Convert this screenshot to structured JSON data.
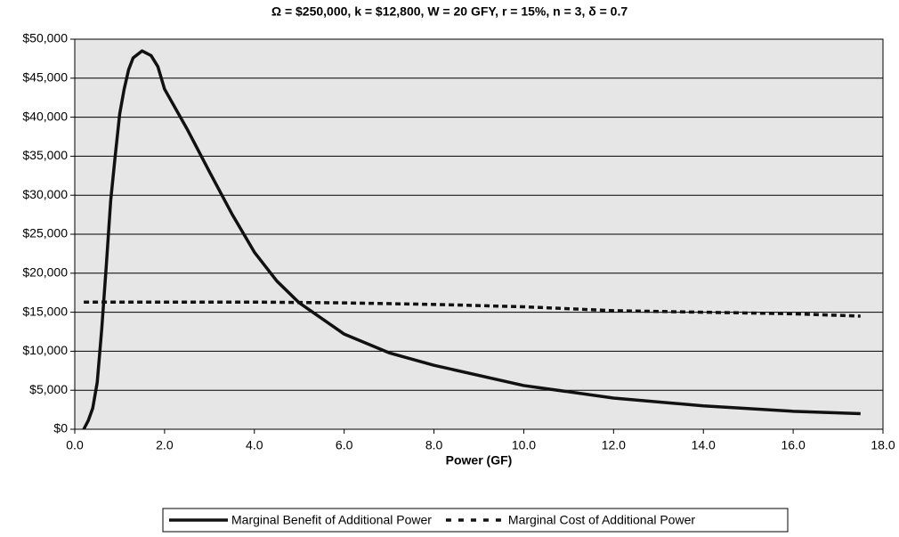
{
  "chart_data": {
    "type": "line",
    "title": "Ω = $250,000, k = $12,800, W = 20 GFY, r = 15%, n = 3, δ = 0.7",
    "xlabel": "Power (GF)",
    "xlim": [
      0,
      18
    ],
    "ylim": [
      0,
      50000
    ],
    "xticks": [
      {
        "value": 0,
        "label": "0.0"
      },
      {
        "value": 2,
        "label": "2.0"
      },
      {
        "value": 4,
        "label": "4.0"
      },
      {
        "value": 6,
        "label": "6.0"
      },
      {
        "value": 8,
        "label": "8.0"
      },
      {
        "value": 10,
        "label": "10.0"
      },
      {
        "value": 12,
        "label": "12.0"
      },
      {
        "value": 14,
        "label": "14.0"
      },
      {
        "value": 16,
        "label": "16.0"
      },
      {
        "value": 18,
        "label": "18.0"
      }
    ],
    "yticks": [
      {
        "value": 0,
        "label": "$0"
      },
      {
        "value": 5000,
        "label": "$5,000"
      },
      {
        "value": 10000,
        "label": "$10,000"
      },
      {
        "value": 15000,
        "label": "$15,000"
      },
      {
        "value": 20000,
        "label": "$20,000"
      },
      {
        "value": 25000,
        "label": "$25,000"
      },
      {
        "value": 30000,
        "label": "$30,000"
      },
      {
        "value": 35000,
        "label": "$35,000"
      },
      {
        "value": 40000,
        "label": "$40,000"
      },
      {
        "value": 45000,
        "label": "$45,000"
      },
      {
        "value": 50000,
        "label": "$50,000"
      }
    ],
    "grid": true,
    "legend": "bottom",
    "series": [
      {
        "name": "Marginal Benefit of Additional Power",
        "color": "#111111",
        "dash": false,
        "x": [
          0.2,
          0.3,
          0.4,
          0.5,
          0.6,
          0.7,
          0.8,
          0.9,
          1.0,
          1.1,
          1.2,
          1.3,
          1.5,
          1.7,
          1.85,
          2.0,
          2.5,
          3.0,
          3.5,
          4.0,
          4.5,
          5.0,
          6.0,
          7.0,
          8.0,
          10.0,
          12.0,
          14.0,
          16.0,
          17.5
        ],
        "values": [
          0,
          1100,
          2700,
          6000,
          12800,
          20800,
          29300,
          35000,
          40400,
          43600,
          46100,
          47600,
          48500,
          47900,
          46500,
          43600,
          38500,
          33000,
          27600,
          22700,
          19000,
          16200,
          12200,
          9800,
          8200,
          5600,
          4000,
          3000,
          2300,
          2000
        ]
      },
      {
        "name": "Marginal Cost of Additional Power",
        "color": "#111111",
        "dash": true,
        "x": [
          0.2,
          2.0,
          4.0,
          6.0,
          8.0,
          10.0,
          12.0,
          14.0,
          16.0,
          17.5
        ],
        "values": [
          16300,
          16300,
          16300,
          16200,
          16000,
          15700,
          15200,
          15000,
          14800,
          14500
        ]
      }
    ]
  }
}
